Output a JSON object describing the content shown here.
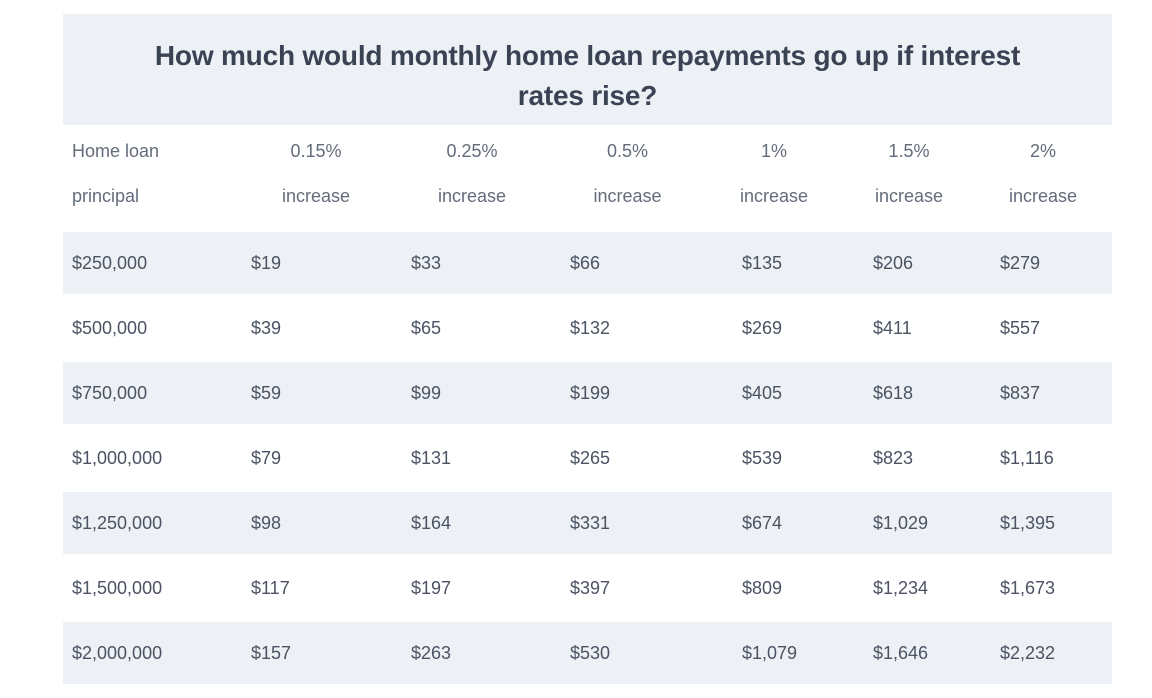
{
  "page_title": "How much would monthly home loan repayments go up if interest\nrates rise?",
  "chart_data": {
    "type": "table",
    "title": "How much would monthly home loan repayments go up if interest rates rise?",
    "columns": [
      [
        "Home loan",
        "principal"
      ],
      [
        "0.15%",
        "increase"
      ],
      [
        "0.25%",
        "increase"
      ],
      [
        "0.5%",
        "increase"
      ],
      [
        "1%",
        "increase"
      ],
      [
        "1.5%",
        "increase"
      ],
      [
        "2%",
        "increase"
      ]
    ],
    "rows": [
      [
        "$250,000",
        "$19",
        "$33",
        "$66",
        "$135",
        "$206",
        "$279"
      ],
      [
        "$500,000",
        "$39",
        "$65",
        "$132",
        "$269",
        "$411",
        "$557"
      ],
      [
        "$750,000",
        "$59",
        "$99",
        "$199",
        "$405",
        "$618",
        "$837"
      ],
      [
        "$1,000,000",
        "$79",
        "$131",
        "$265",
        "$539",
        "$823",
        "$1,116"
      ],
      [
        "$1,250,000",
        "$98",
        "$164",
        "$331",
        "$674",
        "$1,029",
        "$1,395"
      ],
      [
        "$1,500,000",
        "$117",
        "$197",
        "$397",
        "$809",
        "$1,234",
        "$1,673"
      ],
      [
        "$2,000,000",
        "$157",
        "$263",
        "$530",
        "$1,079",
        "$1,646",
        "$2,232"
      ]
    ],
    "layout": {
      "zebra_striping": true,
      "striped_row_indexes": [
        0,
        2,
        4,
        6
      ],
      "gridlines": false
    }
  },
  "colors": {
    "stripe_background": "#edf1f5",
    "title_text": "#3a4254",
    "header_text": "#646c7b",
    "value_text": "#4b5363"
  }
}
